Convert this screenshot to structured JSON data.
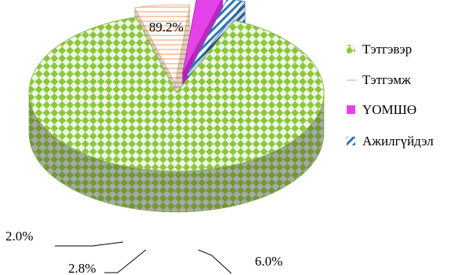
{
  "chart_data": {
    "type": "pie",
    "title": "",
    "legend_position": "right",
    "categories": [
      "Тэтгэвэр",
      "Тэтгэмж",
      "ҮОМШӨ",
      "Ажилгүйдэл"
    ],
    "values": [
      89.2,
      6.0,
      2.8,
      2.0
    ],
    "data_labels": [
      "89.2%",
      "6.0%",
      "2.8%",
      "2.0%"
    ],
    "colors": [
      "#8cc63f",
      "#f4b183",
      "#e442e8",
      "#2e75b6"
    ]
  }
}
